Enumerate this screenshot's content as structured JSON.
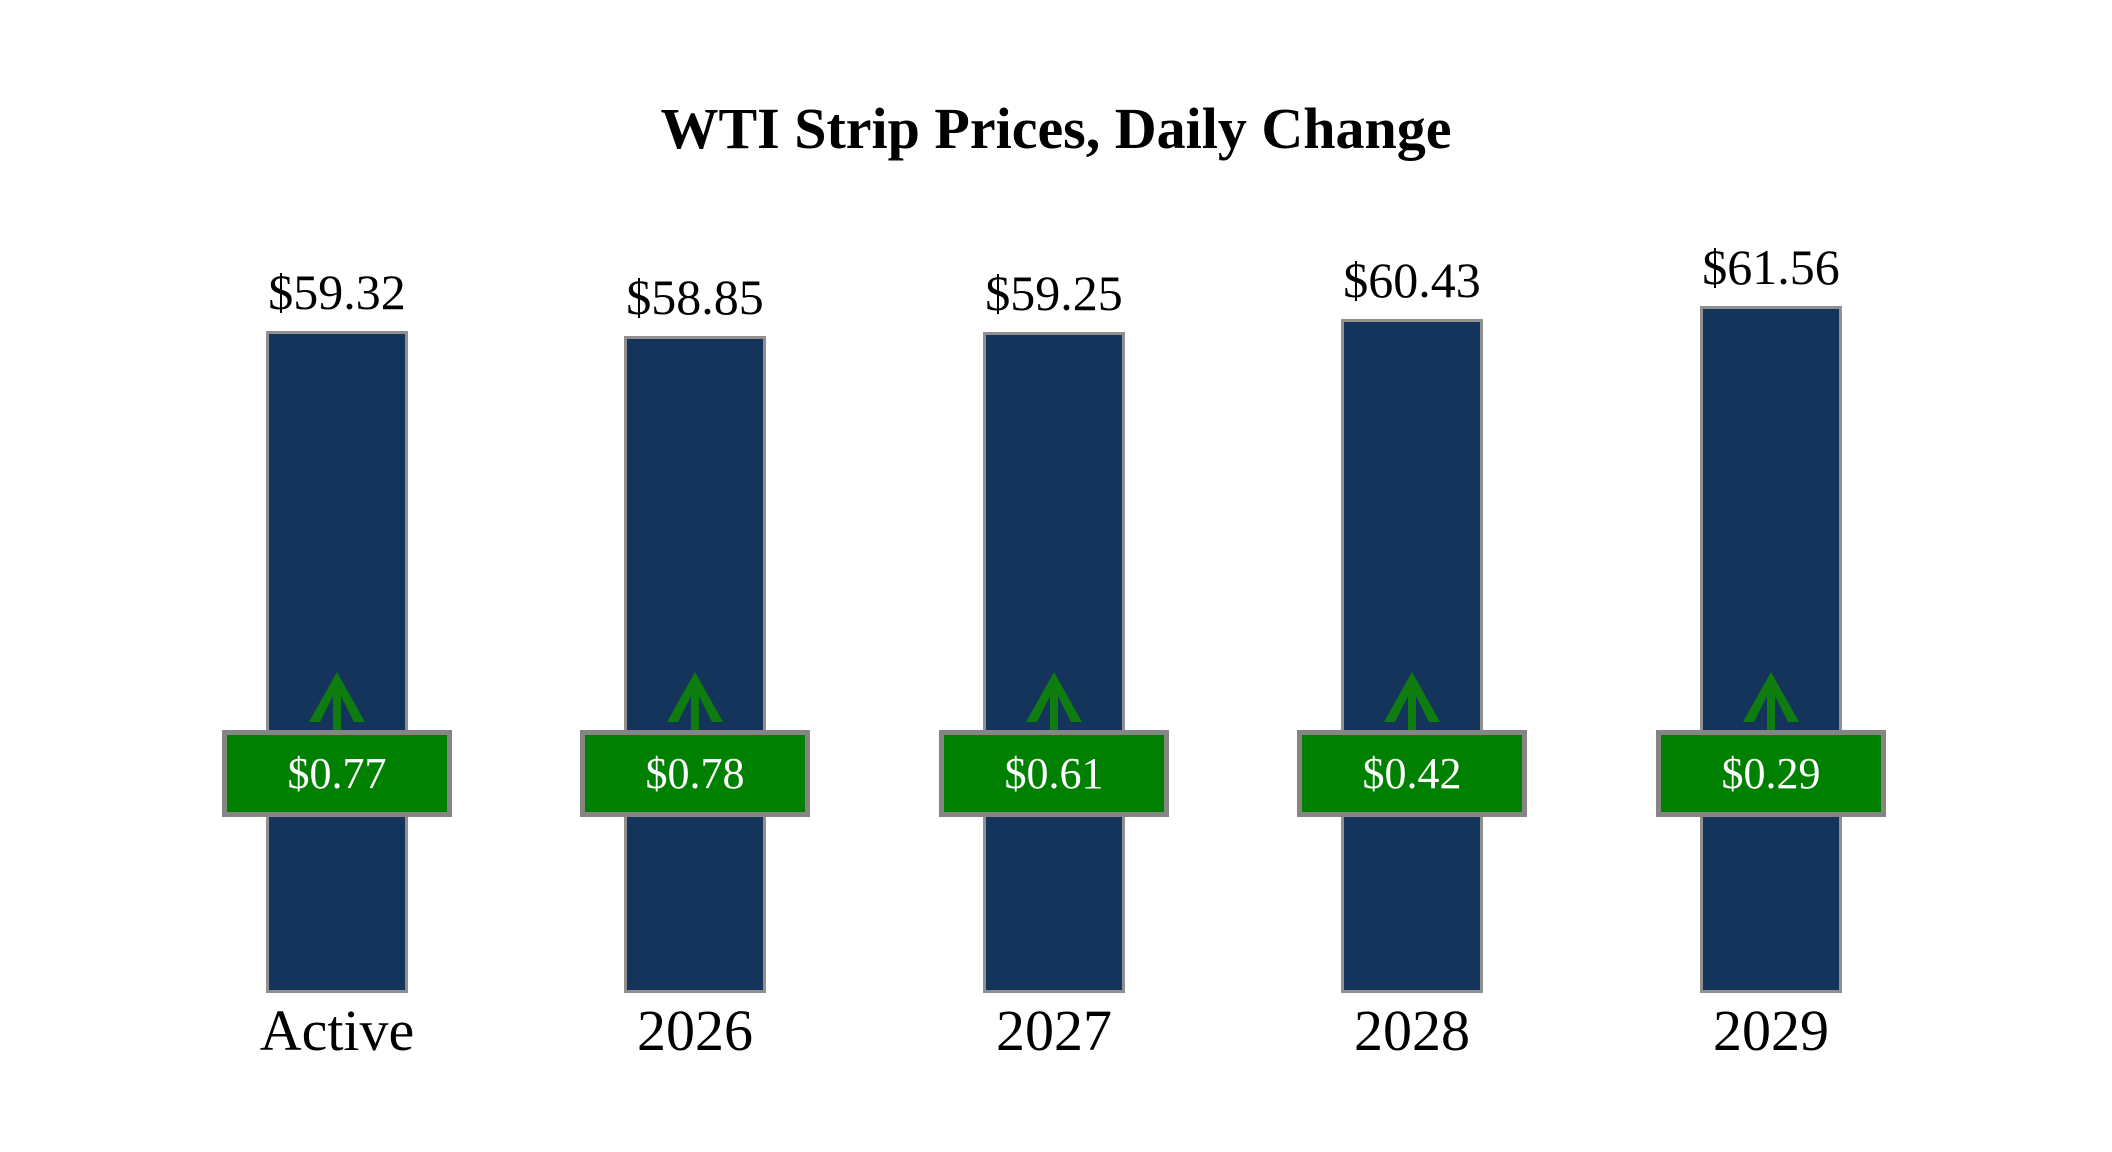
{
  "title": "WTI Strip Prices, Daily Change",
  "chart_data": {
    "type": "bar",
    "title": "WTI Strip Prices, Daily Change",
    "categories": [
      "Active",
      "2026",
      "2027",
      "2028",
      "2029"
    ],
    "series": [
      {
        "name": "strip_price",
        "values": [
          59.32,
          58.85,
          59.25,
          60.43,
          61.56
        ],
        "labels": [
          "$59.32",
          "$58.85",
          "$59.25",
          "$60.43",
          "$61.56"
        ]
      },
      {
        "name": "daily_change",
        "values": [
          0.77,
          0.78,
          0.61,
          0.42,
          0.29
        ],
        "labels": [
          "$0.77",
          "$0.78",
          "$0.61",
          "$0.42",
          "$0.29"
        ],
        "direction": "up"
      }
    ],
    "ylim": [
      0,
      62
    ],
    "grid": false,
    "legend": false,
    "xlabel": "",
    "ylabel": ""
  },
  "colors": {
    "bar_fill": "#15345B",
    "bar_border": "#909090",
    "badge_fill": "#008000",
    "badge_border": "#858585",
    "badge_text": "#FFFFFF",
    "arrow_green": "#0E7C0E",
    "title_text": "#000000",
    "label_text": "#000000",
    "background": "#FFFFFF"
  }
}
